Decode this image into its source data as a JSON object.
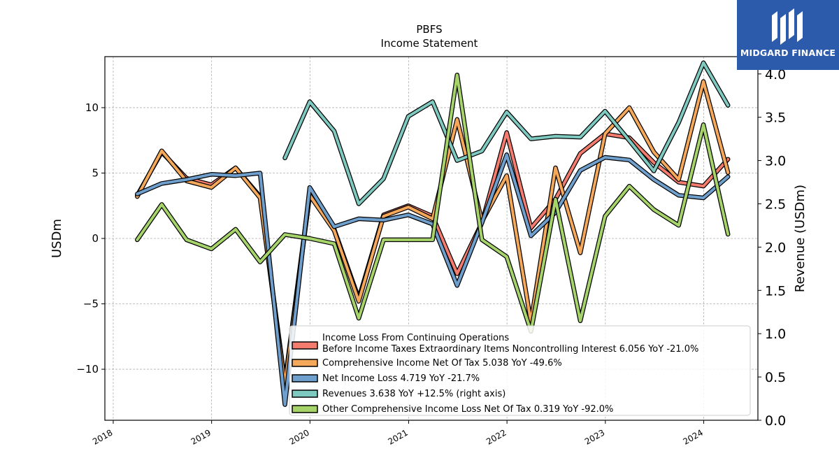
{
  "brand": {
    "name": "MIDGARD FINANCE",
    "logo_icon": "midgard-logo-icon",
    "bg_color": "#2d5bab"
  },
  "chart_data": {
    "type": "line",
    "title": "PBFS",
    "subtitle": "Income Statement",
    "ylabel": "USDm",
    "ylabel_right": "Revenue (USDm)",
    "ylim": [
      -13.9,
      13.9
    ],
    "ylim_right": [
      0,
      4.2
    ],
    "xlim": [
      "2017-12-01",
      "2024-07-20"
    ],
    "y_ticks": [
      -10,
      -5,
      0,
      5,
      10
    ],
    "y_tick_labels": [
      "−10",
      "−5",
      "0",
      "5",
      "10"
    ],
    "y_right_ticks": [
      0,
      0.5,
      1,
      1.5,
      2,
      2.5,
      3,
      3.5,
      4
    ],
    "y_right_tick_labels": [
      "0.0",
      "0.5",
      "1.0",
      "1.5",
      "2.0",
      "2.5",
      "3.0",
      "3.5",
      "4.0"
    ],
    "x_tick_labels": [
      "2018",
      "2019",
      "2020",
      "2021",
      "2022",
      "2023",
      "2024"
    ],
    "x_tick_dates": [
      "2018-01-01",
      "2019-01-01",
      "2020-01-01",
      "2021-01-01",
      "2022-01-01",
      "2023-01-01",
      "2024-01-01"
    ],
    "grid": true,
    "legend_position": "lower-right",
    "series": [
      {
        "name": "Income Loss From Continuing Operations\nBefore Income Taxes Extraordinary Items Noncontrolling Interest  6.056 YoY -21.0%",
        "color": "#f47c6e",
        "axis": "left",
        "x": [
          "2018-03-31",
          "2018-06-30",
          "2018-09-30",
          "2018-12-31",
          "2019-03-31",
          "2019-06-30",
          "2019-09-30",
          "2019-12-31",
          "2020-03-31",
          "2020-06-30",
          "2020-09-30",
          "2020-12-31",
          "2021-03-31",
          "2021-06-30",
          "2021-09-30",
          "2021-12-31",
          "2022-03-31",
          "2022-06-30",
          "2022-09-30",
          "2022-12-31",
          "2023-03-31",
          "2023-06-30",
          "2023-09-30",
          "2023-12-31",
          "2024-03-31"
        ],
        "values": [
          3.3,
          6.6,
          4.6,
          4.1,
          5.4,
          3.2,
          -11.0,
          3.5,
          0.7,
          -4.6,
          1.8,
          2.5,
          1.7,
          -2.7,
          1.2,
          8.1,
          0.8,
          3.0,
          6.5,
          8.0,
          7.7,
          5.8,
          4.3,
          4.0,
          6.056
        ]
      },
      {
        "name": "Comprehensive Income Net Of Tax  5.038 YoY -49.6%",
        "color": "#f5a85a",
        "axis": "left",
        "x": [
          "2018-03-31",
          "2018-06-30",
          "2018-09-30",
          "2018-12-31",
          "2019-03-31",
          "2019-06-30",
          "2019-09-30",
          "2019-12-31",
          "2020-03-31",
          "2020-06-30",
          "2020-09-30",
          "2020-12-31",
          "2021-03-31",
          "2021-06-30",
          "2021-09-30",
          "2021-12-31",
          "2022-03-31",
          "2022-06-30",
          "2022-09-30",
          "2022-12-31",
          "2023-03-31",
          "2023-06-30",
          "2023-09-30",
          "2023-12-31",
          "2024-03-31"
        ],
        "values": [
          3.2,
          6.7,
          4.4,
          3.9,
          5.4,
          3.1,
          -11.2,
          3.3,
          0.6,
          -4.8,
          1.7,
          2.4,
          1.5,
          9.1,
          1.3,
          4.8,
          -6.4,
          5.4,
          -1.1,
          8.0,
          10.0,
          6.6,
          4.5,
          12.0,
          5.038
        ]
      },
      {
        "name": "Net Income Loss  4.719 YoY -21.7%",
        "color": "#6f9fcc",
        "axis": "left",
        "x": [
          "2018-03-31",
          "2018-06-30",
          "2018-09-30",
          "2018-12-31",
          "2019-03-31",
          "2019-06-30",
          "2019-09-30",
          "2019-12-31",
          "2020-03-31",
          "2020-06-30",
          "2020-09-30",
          "2020-12-31",
          "2021-03-31",
          "2021-06-30",
          "2021-09-30",
          "2021-12-31",
          "2022-03-31",
          "2022-06-30",
          "2022-09-30",
          "2022-12-31",
          "2023-03-31",
          "2023-06-30",
          "2023-09-30",
          "2023-12-31",
          "2024-03-31"
        ],
        "values": [
          3.4,
          4.2,
          4.5,
          4.9,
          4.8,
          5.0,
          -12.7,
          3.9,
          0.9,
          1.5,
          1.4,
          1.8,
          1.1,
          -3.6,
          1.2,
          6.4,
          0.2,
          2.0,
          5.2,
          6.2,
          6.0,
          4.5,
          3.3,
          3.1,
          4.719
        ]
      },
      {
        "name": "Revenues  3.638 YoY +12.5% (right axis)",
        "color": "#7fcac0",
        "axis": "right",
        "x": [
          "2019-09-30",
          "2019-12-31",
          "2020-03-31",
          "2020-06-30",
          "2020-09-30",
          "2020-12-31",
          "2021-03-31",
          "2021-06-30",
          "2021-09-30",
          "2021-12-31",
          "2022-03-31",
          "2022-06-30",
          "2022-09-30",
          "2022-12-31",
          "2023-03-31",
          "2023-06-30",
          "2023-09-30",
          "2023-12-31",
          "2024-03-31"
        ],
        "values": [
          3.03,
          3.68,
          3.34,
          2.5,
          2.79,
          3.51,
          3.68,
          3.0,
          3.11,
          3.56,
          3.25,
          3.28,
          3.27,
          3.57,
          3.23,
          2.88,
          3.44,
          4.13,
          3.638
        ]
      },
      {
        "name": "Other Comprehensive Income Loss Net Of Tax  0.319 YoY -92.0%",
        "color": "#a6d46a",
        "axis": "left",
        "x": [
          "2018-03-31",
          "2018-06-30",
          "2018-09-30",
          "2018-12-31",
          "2019-03-31",
          "2019-06-30",
          "2019-09-30",
          "2019-12-31",
          "2020-03-31",
          "2020-06-30",
          "2020-09-30",
          "2020-12-31",
          "2021-03-31",
          "2021-06-30",
          "2021-09-30",
          "2021-12-31",
          "2022-03-31",
          "2022-06-30",
          "2022-09-30",
          "2022-12-31",
          "2023-03-31",
          "2023-06-30",
          "2023-09-30",
          "2023-12-31",
          "2024-03-31"
        ],
        "values": [
          -0.1,
          2.6,
          -0.1,
          -0.8,
          0.7,
          -1.8,
          0.3,
          0.0,
          -0.4,
          -6.1,
          -0.1,
          -0.1,
          -0.1,
          12.5,
          -0.1,
          -1.4,
          -7.1,
          3.0,
          -6.3,
          1.7,
          4.0,
          2.2,
          1.0,
          8.7,
          0.319
        ]
      }
    ]
  }
}
